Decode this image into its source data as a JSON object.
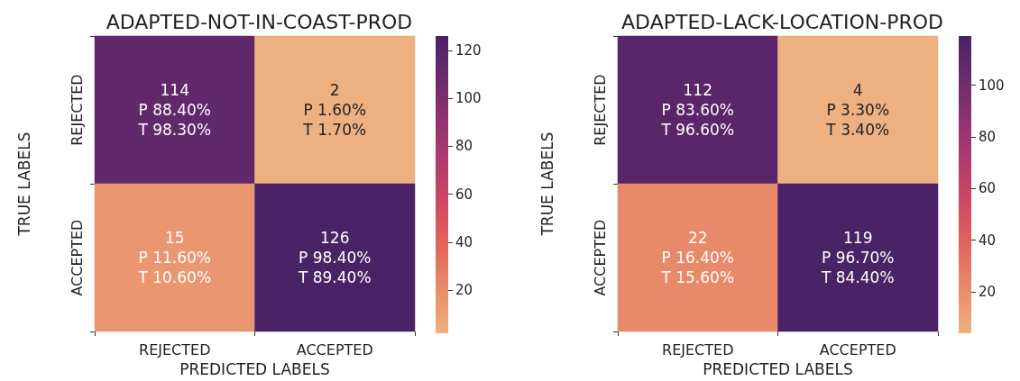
{
  "chart_data": [
    {
      "type": "heatmap",
      "title": "ADAPTED-NOT-IN-COAST-PROD",
      "xlabel": "PREDICTED LABELS",
      "ylabel": "TRUE LABELS",
      "categories": [
        "REJECTED",
        "ACCEPTED"
      ],
      "y_categories": [
        "REJECTED",
        "ACCEPTED"
      ],
      "cells": [
        [
          114,
          2
        ],
        [
          15,
          126
        ]
      ],
      "cell_labels": [
        [
          "114\nP 88.40%\nT 98.30%",
          "2\nP 1.60%\nT 1.70%"
        ],
        [
          "15\nP 11.60%\nT 10.60%",
          "126\nP 98.40%\nT 89.40%"
        ]
      ],
      "clim": [
        2,
        126
      ],
      "cticks": [
        20,
        40,
        60,
        80,
        100,
        120
      ]
    },
    {
      "type": "heatmap",
      "title": "ADAPTED-LACK-LOCATION-PROD",
      "xlabel": "PREDICTED LABELS",
      "ylabel": "TRUE LABELS",
      "categories": [
        "REJECTED",
        "ACCEPTED"
      ],
      "y_categories": [
        "REJECTED",
        "ACCEPTED"
      ],
      "cells": [
        [
          112,
          4
        ],
        [
          22,
          119
        ]
      ],
      "cell_labels": [
        [
          "112\nP 83.60%\nT 96.60%",
          "4\nP 3.30%\nT 3.40%"
        ],
        [
          "22\nP 16.40%\nT 15.60%",
          "119\nP 96.70%\nT 84.40%"
        ]
      ],
      "clim": [
        4,
        119
      ],
      "cticks": [
        20,
        40,
        60,
        80,
        100
      ]
    }
  ]
}
